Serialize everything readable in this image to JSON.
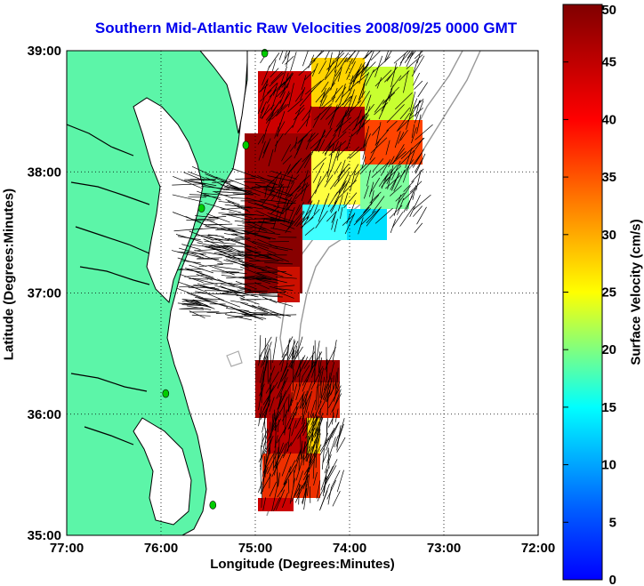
{
  "title": "Southern Mid-Atlantic Raw Velocities 2008/09/25 0000 GMT",
  "x_axis": {
    "label": "Longitude (Degrees:Minutes)",
    "ticks": [
      "77:00",
      "76:00",
      "75:00",
      "74:00",
      "73:00",
      "72:00"
    ]
  },
  "y_axis": {
    "label": "Latitude (Degrees:Minutes)",
    "ticks": [
      "39:00",
      "38:00",
      "37:00",
      "36:00",
      "35:00"
    ]
  },
  "colorbar": {
    "label": "Surface Velocity (cm/s)",
    "ticks": [
      "0",
      "5",
      "10",
      "15",
      "20",
      "25",
      "30",
      "35",
      "40",
      "45",
      "50"
    ],
    "range": [
      0,
      50
    ],
    "colormap": "jet"
  },
  "colors": {
    "land": "#5cf5a8",
    "water": "#ffffff",
    "coast": "#000000",
    "bathymetry": "#999999",
    "station": "#00cc00",
    "grid": "#000000"
  },
  "map": {
    "lon_range": [
      -77,
      -72
    ],
    "lat_range": [
      35,
      39
    ],
    "grid": "dotted",
    "stations": [
      {
        "lon": -74.9,
        "lat": 38.98
      },
      {
        "lon": -75.1,
        "lat": 38.22
      },
      {
        "lon": -75.57,
        "lat": 37.7
      },
      {
        "lon": -75.95,
        "lat": 36.17
      },
      {
        "lon": -75.45,
        "lat": 35.25
      }
    ]
  }
}
